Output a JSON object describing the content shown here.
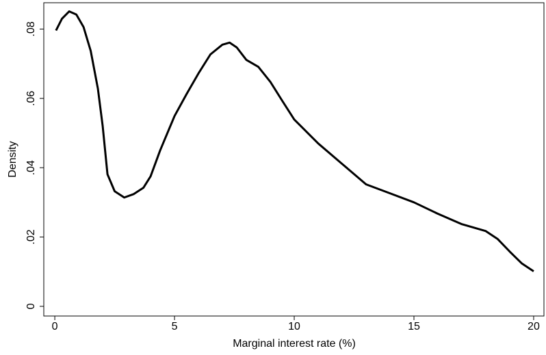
{
  "chart_data": {
    "type": "line",
    "x_label": "Marginal interest rate (%)",
    "y_label": "Density",
    "x": [
      0.05,
      0.3,
      0.6,
      0.9,
      1.2,
      1.5,
      1.8,
      2.0,
      2.2,
      2.5,
      2.9,
      3.3,
      3.7,
      4.0,
      4.4,
      5.0,
      5.5,
      6.0,
      6.5,
      7.0,
      7.3,
      7.6,
      8.0,
      8.5,
      9.0,
      9.5,
      10,
      11,
      12,
      13,
      14,
      15,
      16,
      17,
      18,
      18.5,
      19,
      19.5,
      20
    ],
    "series": [
      {
        "color": "#000000",
        "values": [
          0.0796,
          0.083,
          0.0851,
          0.0842,
          0.0806,
          0.0737,
          0.0628,
          0.052,
          0.0381,
          0.0332,
          0.0314,
          0.0324,
          0.0342,
          0.0375,
          0.045,
          0.0549,
          0.0612,
          0.0672,
          0.0727,
          0.0755,
          0.0761,
          0.0747,
          0.0711,
          0.0691,
          0.0648,
          0.0593,
          0.0539,
          0.047,
          0.0411,
          0.0352,
          0.0326,
          0.03,
          0.0267,
          0.0237,
          0.0217,
          0.0194,
          0.0158,
          0.0124,
          0.0101
        ]
      }
    ],
    "xlim": [
      -0.46,
      20.43
    ],
    "xticks": [
      0,
      5,
      10,
      15,
      20
    ],
    "ylim": [
      -0.0028,
      0.0876
    ],
    "yticks": [
      0,
      {
        "value": 0.02,
        "label": ".02"
      },
      {
        "value": 0.04,
        "label": ".04"
      },
      {
        "value": 0.06,
        "label": ".06"
      },
      {
        "value": 0.08,
        "label": ".08"
      }
    ],
    "grid": false
  }
}
